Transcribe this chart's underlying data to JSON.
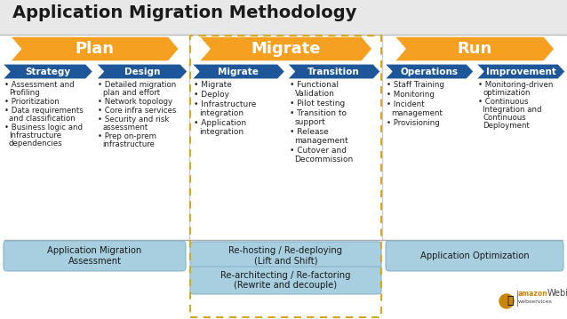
{
  "title": "Application Migration Methodology",
  "background_color": "#f0f0f0",
  "content_bg": "#ffffff",
  "title_color": "#1a1a1a",
  "orange_color": "#f5a020",
  "blue_color": "#1e5799",
  "light_blue_box": "#a8cfe0",
  "dashed_border_color": "#d4a820",
  "sep_color": "#aaaaaa",
  "phase_labels": [
    "Plan",
    "Migrate",
    "Run"
  ],
  "sub_labels": [
    [
      "Strategy",
      "Design"
    ],
    [
      "Migrate",
      "Transition"
    ],
    [
      "Operations",
      "Improvement"
    ]
  ],
  "strategy_items": [
    "Assessment and\nProfiling",
    "Prioritization",
    "Data requirements\nand classification",
    "Business logic and\nInfrastructure\ndependencies"
  ],
  "design_items": [
    "Detailed migration\nplan and effort",
    "Network topology",
    "Core infra services",
    "Security and risk\nassessment",
    "Prep on-prem\ninfrastructure"
  ],
  "migrate_items": [
    "Migrate",
    "Deploy",
    "Infrastructure\nintegration",
    "Application\nintegration"
  ],
  "transition_items": [
    "Functional\nValidation",
    "Pilot testing",
    "Transition to\nsupport",
    "Release\nmanagement",
    "Cutover and\nDecommission"
  ],
  "operations_items": [
    "Staff Training",
    "Monitoring",
    "Incident\nmanagement",
    "Provisioning"
  ],
  "improvement_items": [
    "Monitoring-driven\noptimization",
    "Continuous\nIntegration and\nContinuous\nDeployment"
  ],
  "box_left": "Application Migration\nAssessment",
  "box_mid1": "Re-hosting / Re-deploying\n(Lift and Shift)",
  "box_mid2": "Re-architecting / Re-factoring\n(Rewrite and decouple)",
  "box_right": "Application Optimization"
}
